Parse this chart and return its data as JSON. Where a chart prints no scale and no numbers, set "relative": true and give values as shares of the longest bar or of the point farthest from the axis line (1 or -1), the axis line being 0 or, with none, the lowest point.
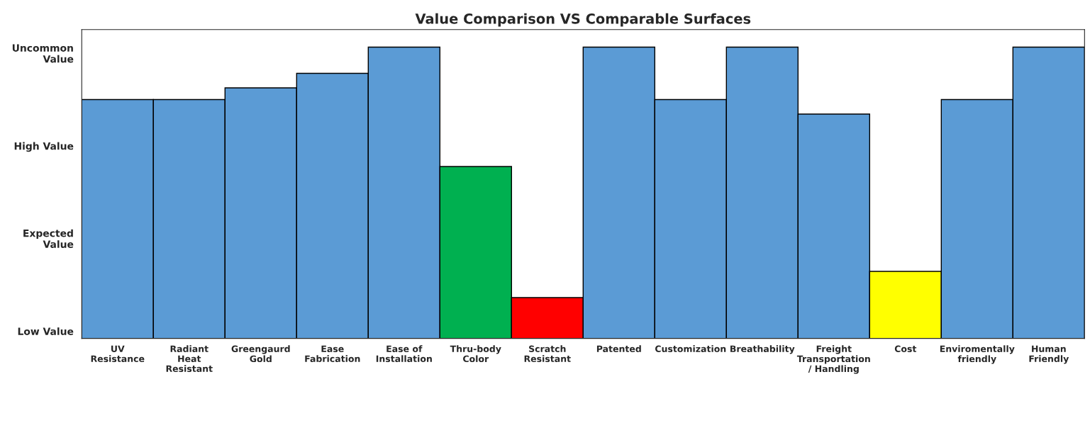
{
  "chart_data": {
    "type": "bar",
    "title": "Value Comparison VS Comparable Surfaces",
    "categories": [
      "UV Resistance",
      "Radiant Heat Resistant",
      "Greengaurd Gold",
      "Ease Fabrication",
      "Ease of Installation",
      "Thru-body Color",
      "Scratch Resistant",
      "Patented",
      "Customization",
      "Breathability",
      "Freight Transportation / Handling",
      "Cost",
      "Enviromentally friendly",
      "Human Friendly"
    ],
    "values": [
      0.82,
      0.82,
      0.86,
      0.91,
      1,
      0.59,
      0.14,
      1,
      0.82,
      1,
      0.77,
      0.23,
      0.82,
      1
    ],
    "colors": [
      "#5b9bd5",
      "#5b9bd5",
      "#5b9bd5",
      "#5b9bd5",
      "#5b9bd5",
      "#00b050",
      "#ff0000",
      "#5b9bd5",
      "#5b9bd5",
      "#5b9bd5",
      "#5b9bd5",
      "#ffff00",
      "#5b9bd5",
      "#5b9bd5"
    ],
    "relative": true,
    "annotations": [
      "Low Value",
      "Expected Value",
      "High Value",
      "Uncommon Value"
    ],
    "grid": false,
    "legend": false
  }
}
